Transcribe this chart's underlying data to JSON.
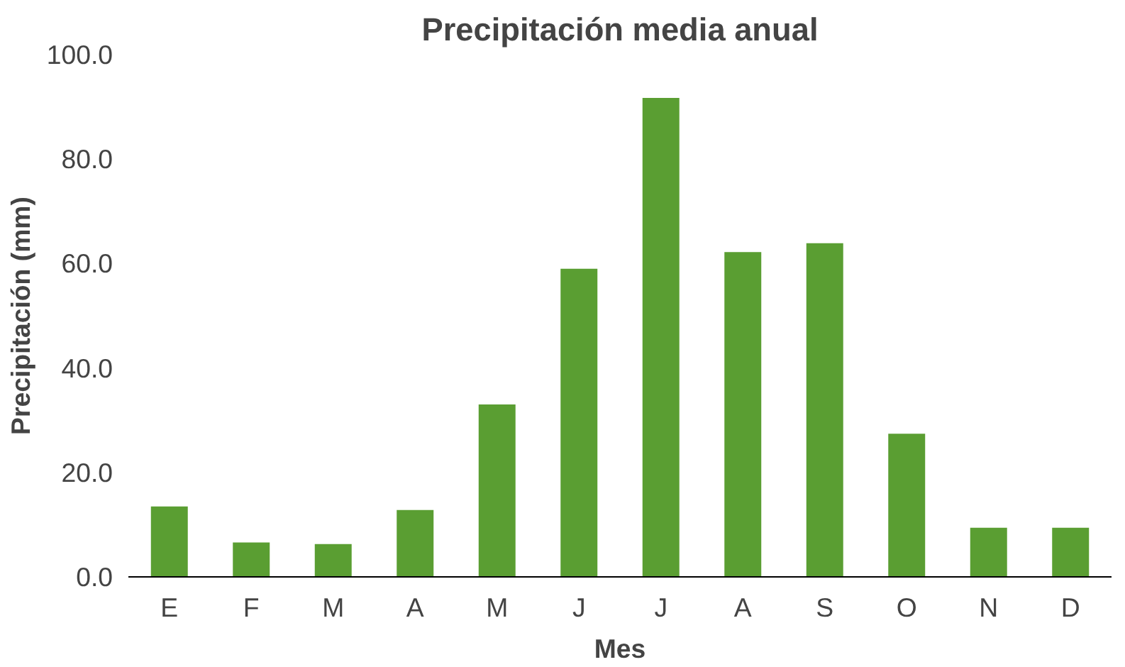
{
  "chart_data": {
    "type": "bar",
    "title": "Precipitación media anual",
    "xlabel": "Mes",
    "ylabel": "Precipitación (mm)",
    "categories": [
      "E",
      "F",
      "M",
      "A",
      "M",
      "J",
      "J",
      "A",
      "S",
      "O",
      "N",
      "D"
    ],
    "values": [
      13.5,
      6.6,
      6.3,
      12.8,
      33.0,
      59.0,
      91.7,
      62.2,
      63.9,
      27.4,
      9.4,
      9.4
    ],
    "color": "#5a9e32",
    "ylim": [
      0,
      100
    ],
    "yticks": [
      {
        "value": 0,
        "label": "0.0"
      },
      {
        "value": 20,
        "label": "20.0"
      },
      {
        "value": 40,
        "label": "40.0"
      },
      {
        "value": 60,
        "label": "60.0"
      },
      {
        "value": 80,
        "label": "80.0"
      },
      {
        "value": 100,
        "label": "100.0"
      }
    ],
    "grid": false
  }
}
